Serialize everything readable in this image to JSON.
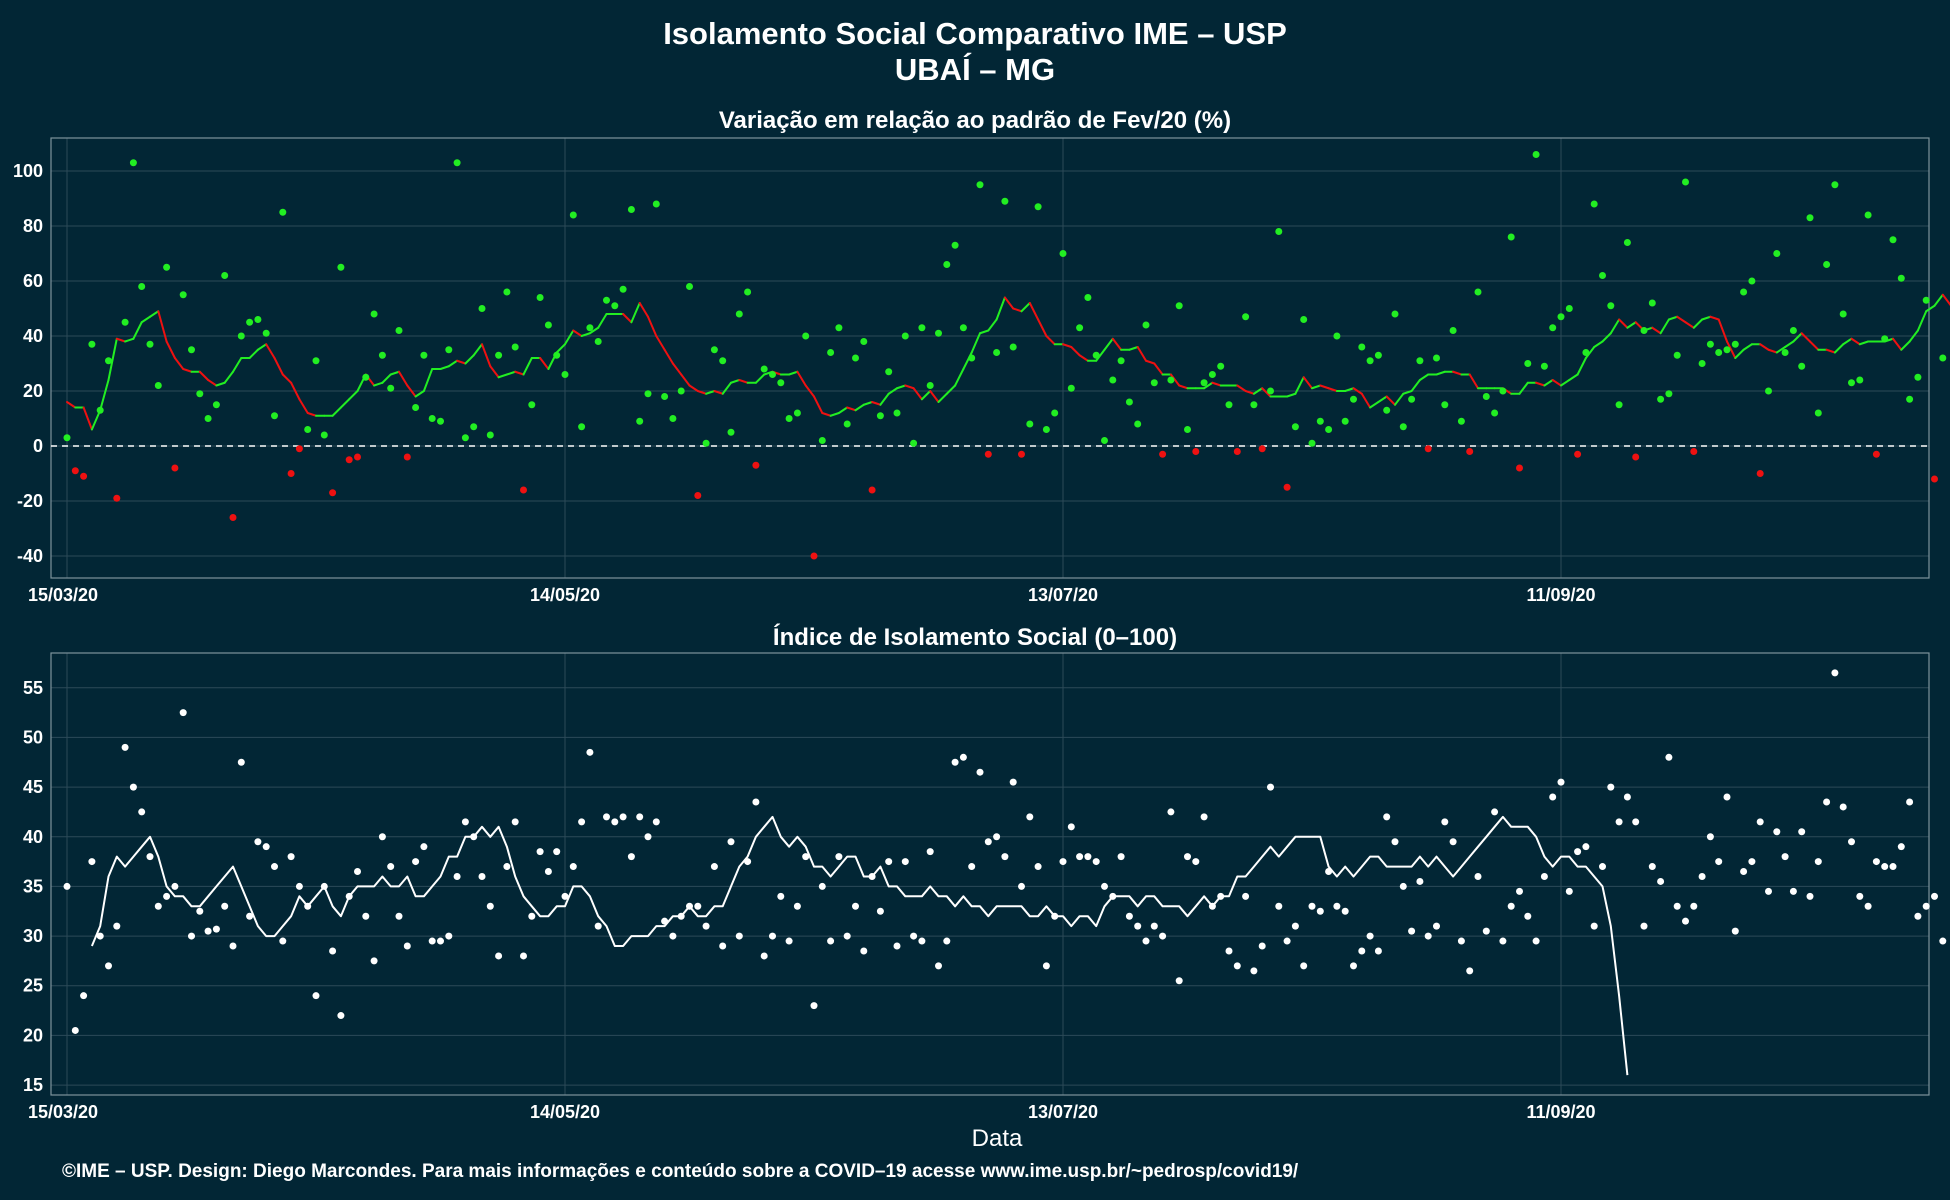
{
  "header": {
    "title": "Isolamento Social Comparativo IME – USP",
    "subtitle": "UBAÍ – MG"
  },
  "footer": {
    "xlabel": "Data",
    "credits": "©IME – USP. Design: Diego Marcondes. Para mais informações e conteúdo sobre a COVID–19 acesse www.ime.usp.br/~pedrosp/covid19/"
  },
  "colors": {
    "background": "#022635",
    "positive": "#22ee22",
    "negative": "#ee1111",
    "index": "#ffffff",
    "grid": "#2c4a58",
    "frame": "#7d939c"
  },
  "chart_data": [
    {
      "type": "scatter",
      "title": "Variação em relação ao padrão de Fev/20 (%)",
      "x_start_label": "15/03/20",
      "x_tick_labels": [
        "15/03/20",
        "14/05/20",
        "13/07/20",
        "11/09/20"
      ],
      "ylim": [
        -48,
        112
      ],
      "y_ticks": [
        -40,
        -20,
        0,
        20,
        40,
        60,
        80,
        100
      ],
      "reference_line": 0,
      "values": [
        3,
        -9,
        -11,
        37,
        13,
        31,
        -19,
        45,
        103,
        58,
        37,
        22,
        65,
        -8,
        55,
        35,
        19,
        10,
        15,
        62,
        -26,
        40,
        45,
        46,
        41,
        11,
        85,
        -10,
        -1,
        6,
        31,
        4,
        -17,
        65,
        -5,
        -4,
        25,
        48,
        33,
        21,
        42,
        -4,
        14,
        33,
        10,
        9,
        35,
        103,
        3,
        7,
        50,
        4,
        33,
        56,
        36,
        -16,
        15,
        54,
        44,
        33,
        26,
        84,
        7,
        43,
        38,
        53,
        51,
        57,
        86,
        9,
        19,
        88,
        18,
        10,
        20,
        58,
        -18,
        1,
        35,
        31,
        5,
        48,
        56,
        -7,
        28,
        26,
        23,
        10,
        12,
        40,
        -40,
        2,
        34,
        43,
        8,
        32,
        38,
        -16,
        11,
        27,
        12,
        40,
        1,
        43,
        22,
        41,
        66,
        73,
        43,
        32,
        95,
        -3,
        34,
        89,
        36,
        -3,
        8,
        87,
        6,
        12,
        70,
        21,
        43,
        54,
        33,
        2,
        24,
        31,
        16,
        8,
        44,
        23,
        -3,
        24,
        51,
        6,
        -2,
        23,
        26,
        29,
        15,
        -2,
        47,
        15,
        -1,
        20,
        78,
        -15,
        7,
        46,
        1,
        9,
        6,
        40,
        9,
        17,
        36,
        31,
        33,
        13,
        48,
        7,
        17,
        31,
        -1,
        32,
        15,
        42,
        9,
        -2,
        56,
        18,
        12,
        20,
        76,
        -8,
        30,
        106,
        29,
        43,
        47,
        50,
        -3,
        34,
        88,
        62,
        51,
        15,
        74,
        -4,
        42,
        52,
        17,
        19,
        33,
        96,
        -2,
        30,
        37,
        34,
        35,
        37,
        56,
        60,
        -10,
        20,
        70,
        34,
        42,
        29,
        83,
        12,
        66,
        95,
        48,
        23,
        24,
        84,
        -3,
        39,
        75,
        61,
        17,
        25,
        53,
        -12,
        32
      ],
      "moving_average": [
        16,
        14,
        14,
        6,
        13,
        24,
        39,
        38,
        39,
        45,
        47,
        49,
        38,
        32,
        28,
        27,
        27,
        24,
        22,
        23,
        27,
        32,
        32,
        35,
        37,
        32,
        26,
        23,
        17,
        12,
        11,
        11,
        11,
        14,
        17,
        20,
        26,
        22,
        23,
        26,
        27,
        22,
        18,
        20,
        28,
        28,
        29,
        31,
        30,
        33,
        37,
        29,
        25,
        26,
        27,
        26,
        32,
        32,
        28,
        34,
        37,
        42,
        40,
        41,
        43,
        48,
        48,
        48,
        45,
        52,
        47,
        40,
        35,
        30,
        26,
        22,
        20,
        19,
        20,
        19,
        23,
        24,
        23,
        23,
        26,
        27,
        26,
        26,
        27,
        22,
        18,
        12,
        11,
        12,
        14,
        13,
        15,
        16,
        15,
        19,
        21,
        22,
        21,
        17,
        20,
        16,
        19,
        22,
        28,
        34,
        41,
        42,
        46,
        54,
        50,
        49,
        52,
        46,
        40,
        37,
        37,
        36,
        33,
        31,
        31,
        35,
        39,
        35,
        35,
        36,
        31,
        30,
        26,
        26,
        22,
        21,
        21,
        21,
        23,
        22,
        22,
        22,
        20,
        19,
        21,
        18,
        18,
        18,
        19,
        25,
        21,
        22,
        21,
        20,
        20,
        21,
        19,
        14,
        16,
        18,
        15,
        19,
        20,
        24,
        26,
        26,
        27,
        27,
        26,
        26,
        21,
        21,
        21,
        21,
        19,
        19,
        23,
        23,
        22,
        24,
        22,
        24,
        26,
        32,
        36,
        38,
        41,
        46,
        43,
        45,
        42,
        43,
        41,
        46,
        47,
        45,
        43,
        46,
        47,
        46,
        38,
        32,
        35,
        37,
        37,
        35,
        34,
        36,
        38,
        41,
        38,
        35,
        35,
        34,
        37,
        39,
        37,
        38,
        38,
        38,
        39,
        35,
        38,
        42,
        49,
        51,
        55,
        51,
        51,
        51,
        47,
        40,
        38,
        39,
        39,
        39,
        35,
        33,
        36
      ]
    },
    {
      "type": "scatter",
      "title": "Índice de Isolamento Social (0–100)",
      "xlabel": "Data",
      "x_start_label": "15/03/20",
      "x_tick_labels": [
        "15/03/20",
        "14/05/20",
        "13/07/20",
        "11/09/20"
      ],
      "ylim": [
        14,
        58.5
      ],
      "y_ticks": [
        15,
        20,
        25,
        30,
        35,
        40,
        45,
        50,
        55
      ],
      "values": [
        35,
        20.5,
        24,
        37.5,
        30,
        27,
        31,
        49,
        45,
        42.5,
        38,
        33,
        34,
        35,
        52.5,
        30,
        32.5,
        30.5,
        30.7,
        33,
        29,
        47.5,
        32,
        39.5,
        39,
        37,
        29.5,
        38,
        35,
        33,
        24,
        35,
        28.5,
        22,
        34,
        36.5,
        32,
        27.5,
        40,
        37,
        32,
        29,
        37.5,
        39,
        29.5,
        29.5,
        30,
        36,
        41.5,
        40,
        36,
        33,
        28,
        37,
        41.5,
        28,
        32,
        38.5,
        36.5,
        38.5,
        34,
        37,
        41.5,
        48.5,
        31,
        42,
        41.5,
        42,
        38,
        42,
        40,
        41.5,
        31.5,
        30,
        32,
        33,
        33,
        31,
        37,
        29,
        39.5,
        30,
        37.5,
        43.5,
        28,
        30,
        34,
        29.5,
        33,
        38,
        23,
        35,
        29.5,
        38,
        30,
        33,
        28.5,
        36,
        32.5,
        37.5,
        29,
        37.5,
        30,
        29.5,
        38.5,
        27,
        29.5,
        47.5,
        48,
        37,
        46.5,
        39.5,
        40,
        38,
        45.5,
        35,
        42,
        37,
        27,
        32,
        37.5,
        41,
        38,
        38,
        37.5,
        35,
        34,
        38,
        32,
        31,
        29.5,
        31,
        30,
        42.5,
        25.5,
        38,
        37.5,
        42,
        33,
        34,
        28.5,
        27,
        34,
        26.5,
        29,
        45,
        33,
        29.5,
        31,
        27,
        33,
        32.5,
        36.5,
        33,
        32.5,
        27,
        28.5,
        30,
        28.5,
        42,
        39.5,
        35,
        30.5,
        35.5,
        30,
        31,
        41.5,
        39.5,
        29.5,
        26.5,
        36,
        30.5,
        42.5,
        29.5,
        33,
        34.5,
        32,
        29.5,
        36,
        44,
        45.5,
        34.5,
        38.5,
        39,
        31,
        37,
        45,
        41.5,
        44,
        41.5,
        31,
        37,
        35.5,
        48,
        33,
        31.5,
        33,
        36,
        40,
        37.5,
        44,
        30.5,
        36.5,
        37.5,
        41.5,
        34.5,
        40.5,
        38,
        34.5,
        40.5,
        34,
        37.5,
        43.5,
        56.5,
        43,
        39.5,
        34,
        33,
        37.5,
        37,
        37,
        39,
        43.5,
        32,
        33,
        34,
        29.5
      ],
      "moving_average": [
        29,
        31,
        36,
        38,
        37,
        38,
        39,
        40,
        38,
        35,
        34,
        34,
        33,
        33,
        34,
        35,
        36,
        37,
        35,
        33,
        31,
        30,
        30,
        31,
        32,
        34,
        33,
        34,
        35,
        33,
        32,
        34,
        35,
        35,
        35,
        36,
        35,
        35,
        36,
        34,
        34,
        35,
        36,
        38,
        38,
        40,
        40,
        41,
        40,
        41,
        39,
        36,
        34,
        33,
        32,
        32,
        33,
        33,
        35,
        35,
        34,
        32,
        31,
        29,
        29,
        30,
        30,
        30,
        31,
        31,
        32,
        32,
        33,
        32,
        32,
        33,
        33,
        35,
        37,
        38,
        40,
        41,
        42,
        40,
        39,
        40,
        39,
        37,
        37,
        36,
        37,
        38,
        38,
        36,
        36,
        37,
        35,
        35,
        34,
        34,
        34,
        35,
        34,
        34,
        33,
        34,
        33,
        33,
        32,
        33,
        33,
        33,
        33,
        32,
        32,
        33,
        32,
        32,
        31,
        32,
        32,
        31,
        33,
        34,
        34,
        34,
        33,
        34,
        34,
        33,
        33,
        33,
        32,
        33,
        34,
        33,
        34,
        34,
        36,
        36,
        37,
        38,
        39,
        38,
        39,
        40,
        40,
        40,
        40,
        37,
        36,
        37,
        36,
        37,
        38,
        38,
        37,
        37,
        37,
        37,
        38,
        37,
        38,
        37,
        36,
        37,
        38,
        39,
        40,
        41,
        42,
        41,
        41,
        41,
        40,
        38,
        37,
        38,
        38,
        37,
        37,
        36,
        35,
        31,
        24,
        16
      ]
    }
  ]
}
